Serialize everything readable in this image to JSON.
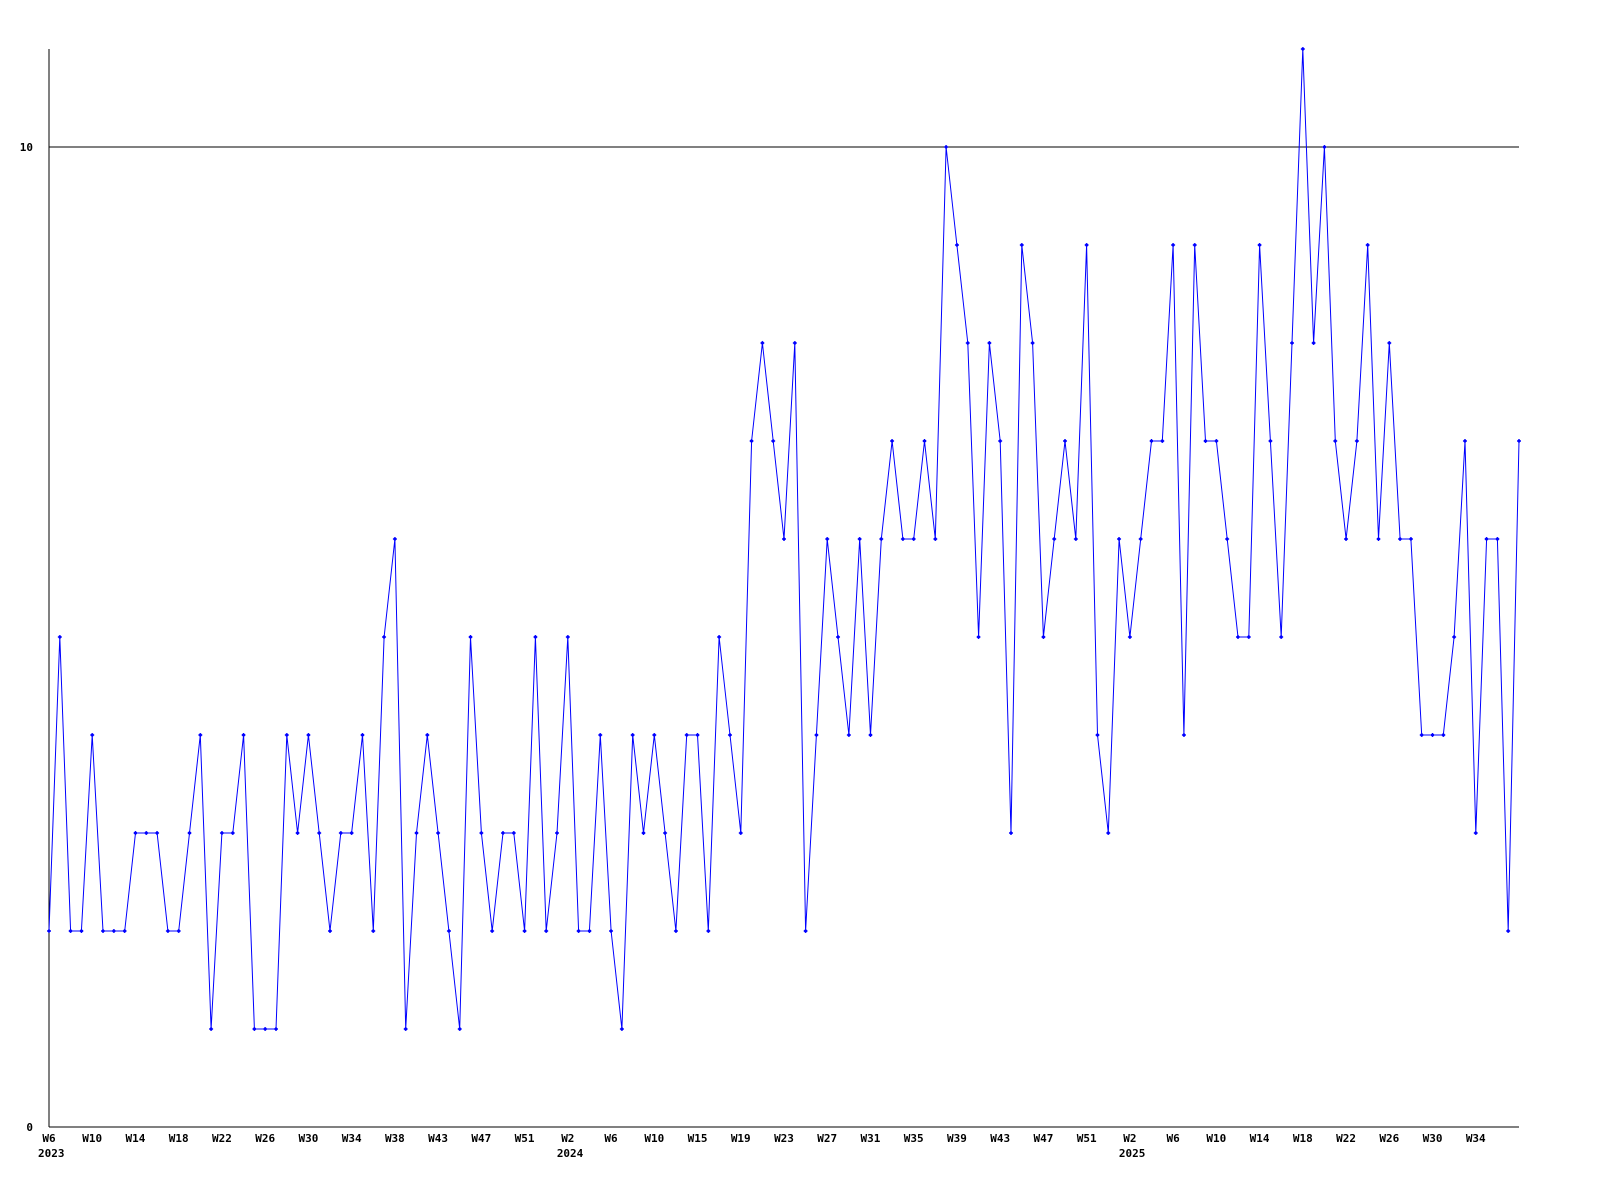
{
  "chart_data": {
    "type": "line",
    "title": "",
    "xlabel": "",
    "ylabel": "",
    "ylim": [
      0,
      11
    ],
    "y_ticks": [
      {
        "value": 0,
        "label": "0"
      },
      {
        "value": 10,
        "label": "10"
      }
    ],
    "grid": "horizontal line at 10",
    "x_ticks": [
      {
        "index": 0,
        "label": "W6"
      },
      {
        "index": 4,
        "label": "W10"
      },
      {
        "index": 8,
        "label": "W14"
      },
      {
        "index": 12,
        "label": "W18"
      },
      {
        "index": 16,
        "label": "W22"
      },
      {
        "index": 20,
        "label": "W26"
      },
      {
        "index": 24,
        "label": "W30"
      },
      {
        "index": 28,
        "label": "W34"
      },
      {
        "index": 32,
        "label": "W38"
      },
      {
        "index": 36,
        "label": "W43"
      },
      {
        "index": 40,
        "label": "W47"
      },
      {
        "index": 44,
        "label": "W51"
      },
      {
        "index": 48,
        "label": "W2"
      },
      {
        "index": 52,
        "label": "W6"
      },
      {
        "index": 56,
        "label": "W10"
      },
      {
        "index": 60,
        "label": "W15"
      },
      {
        "index": 64,
        "label": "W19"
      },
      {
        "index": 68,
        "label": "W23"
      },
      {
        "index": 72,
        "label": "W27"
      },
      {
        "index": 76,
        "label": "W31"
      },
      {
        "index": 80,
        "label": "W35"
      },
      {
        "index": 84,
        "label": "W39"
      },
      {
        "index": 88,
        "label": "W43"
      },
      {
        "index": 92,
        "label": "W47"
      },
      {
        "index": 96,
        "label": "W51"
      },
      {
        "index": 100,
        "label": "W2"
      },
      {
        "index": 104,
        "label": "W6"
      },
      {
        "index": 108,
        "label": "W10"
      },
      {
        "index": 112,
        "label": "W14"
      },
      {
        "index": 116,
        "label": "W18"
      },
      {
        "index": 120,
        "label": "W22"
      },
      {
        "index": 124,
        "label": "W26"
      },
      {
        "index": 128,
        "label": "W30"
      },
      {
        "index": 132,
        "label": "W34"
      }
    ],
    "year_labels": [
      {
        "index": 0,
        "label": "2023"
      },
      {
        "index": 48,
        "label": "2024"
      },
      {
        "index": 100,
        "label": "2025"
      }
    ],
    "series": [
      {
        "color": "#0000ff",
        "values": [
          2,
          5,
          2,
          2,
          4,
          2,
          2,
          2,
          3,
          3,
          3,
          2,
          2,
          3,
          4,
          1,
          3,
          3,
          4,
          1,
          1,
          1,
          4,
          3,
          4,
          3,
          2,
          3,
          3,
          4,
          2,
          5,
          6,
          1,
          3,
          4,
          3,
          2,
          1,
          5,
          3,
          2,
          3,
          3,
          2,
          5,
          2,
          3,
          5,
          2,
          2,
          4,
          2,
          1,
          4,
          3,
          4,
          3,
          2,
          4,
          4,
          2,
          5,
          4,
          3,
          7,
          8,
          7,
          6,
          8,
          2,
          4,
          6,
          5,
          4,
          6,
          4,
          6,
          7,
          6,
          6,
          7,
          6,
          10,
          9,
          8,
          5,
          8,
          7,
          3,
          9,
          8,
          5,
          6,
          7,
          6,
          9,
          4,
          3,
          6,
          5,
          6,
          7,
          7,
          9,
          4,
          9,
          7,
          7,
          6,
          5,
          5,
          9,
          7,
          5,
          8,
          11,
          8,
          10,
          7,
          6,
          7,
          9,
          6,
          8,
          6,
          6,
          4,
          4,
          4,
          5,
          7,
          3,
          6,
          6,
          2,
          7
        ]
      }
    ]
  }
}
